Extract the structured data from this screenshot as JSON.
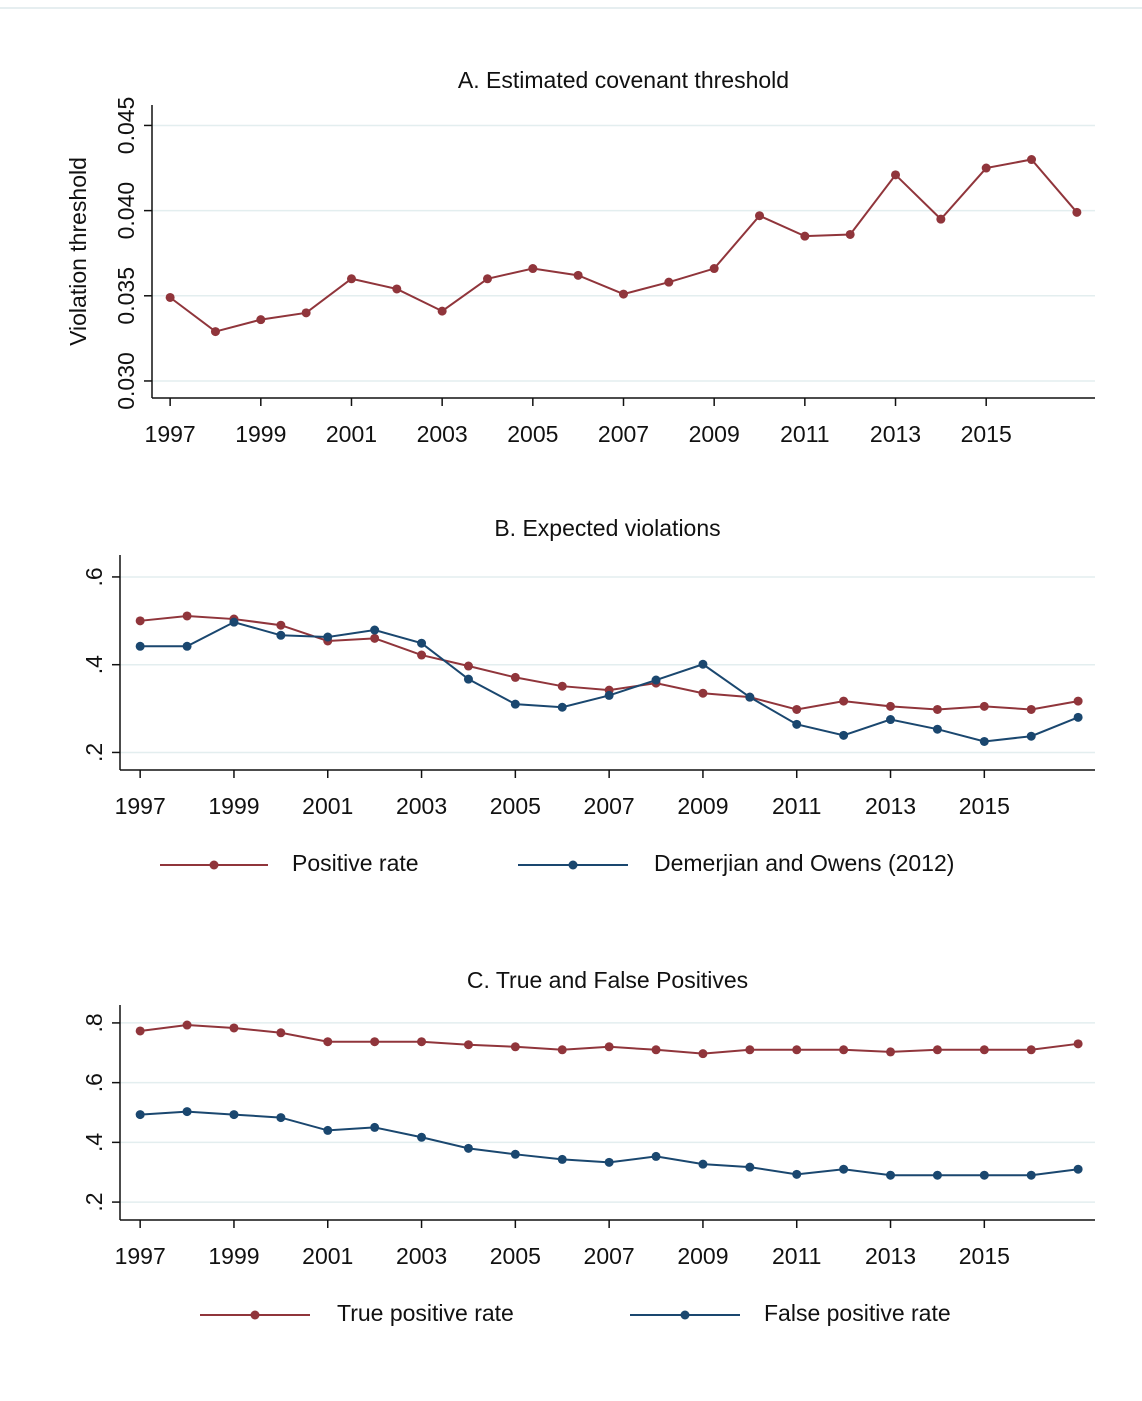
{
  "chart_data": [
    {
      "type": "line",
      "title": "A. Estimated covenant threshold",
      "ylabel": "Violation threshold",
      "x": [
        1997,
        1998,
        1999,
        2000,
        2001,
        2002,
        2003,
        2004,
        2005,
        2006,
        2007,
        2008,
        2009,
        2010,
        2011,
        2012,
        2013,
        2014,
        2015,
        2016,
        2017
      ],
      "series": [
        {
          "color": "#90353b",
          "values": [
            0.0349,
            0.0329,
            0.0336,
            0.034,
            0.036,
            0.0354,
            0.0341,
            0.036,
            0.0366,
            0.0362,
            0.0351,
            0.0358,
            0.0366,
            0.0397,
            0.0385,
            0.0386,
            0.0421,
            0.0395,
            0.0425,
            0.043,
            0.0399
          ]
        }
      ],
      "xlim": [
        1996.6,
        2017.4
      ],
      "ylim": [
        0.029,
        0.0462
      ],
      "xticks": [
        1997,
        1999,
        2001,
        2003,
        2005,
        2007,
        2009,
        2011,
        2013,
        2015
      ],
      "yticks": [
        {
          "value": 0.03,
          "label": "0.030"
        },
        0.035,
        {
          "value": 0.04,
          "label": "0.040"
        },
        0.045
      ],
      "grid": true
    },
    {
      "type": "line",
      "title": "B. Expected violations",
      "x": [
        1997,
        1998,
        1999,
        2000,
        2001,
        2002,
        2003,
        2004,
        2005,
        2006,
        2007,
        2008,
        2009,
        2010,
        2011,
        2012,
        2013,
        2014,
        2015,
        2016,
        2017
      ],
      "series": [
        {
          "name": "Positive rate",
          "color": "#90353b",
          "values": [
            0.5,
            0.511,
            0.504,
            0.49,
            0.454,
            0.46,
            0.422,
            0.397,
            0.371,
            0.351,
            0.342,
            0.358,
            0.335,
            0.326,
            0.298,
            0.317,
            0.305,
            0.298,
            0.305,
            0.298,
            0.317
          ]
        },
        {
          "name": "Demerjian and Owens (2012)",
          "color": "#1a476f",
          "values": [
            0.442,
            0.442,
            0.497,
            0.467,
            0.463,
            0.479,
            0.449,
            0.367,
            0.31,
            0.303,
            0.33,
            0.365,
            0.401,
            0.326,
            0.264,
            0.239,
            0.275,
            0.253,
            0.225,
            0.237,
            0.28
          ]
        }
      ],
      "xlim": [
        1996.57,
        2017.36
      ],
      "ylim": [
        0.16,
        0.65
      ],
      "xticks": [
        1997,
        1999,
        2001,
        2003,
        2005,
        2007,
        2009,
        2011,
        2013,
        2015
      ],
      "yticks": [
        {
          "value": 0.2,
          "label": ".2"
        },
        {
          "value": 0.4,
          "label": ".4"
        },
        {
          "value": 0.6,
          "label": ".6"
        }
      ],
      "grid": true,
      "legend": "bottom"
    },
    {
      "type": "line",
      "title": "C. True and False Positives",
      "x": [
        1997,
        1998,
        1999,
        2000,
        2001,
        2002,
        2003,
        2004,
        2005,
        2006,
        2007,
        2008,
        2009,
        2010,
        2011,
        2012,
        2013,
        2014,
        2015,
        2016,
        2017
      ],
      "series": [
        {
          "name": "True positive rate",
          "color": "#90353b",
          "values": [
            0.773,
            0.793,
            0.783,
            0.767,
            0.737,
            0.737,
            0.737,
            0.727,
            0.72,
            0.71,
            0.72,
            0.71,
            0.697,
            0.71,
            0.71,
            0.71,
            0.703,
            0.71,
            0.71,
            0.71,
            0.73
          ]
        },
        {
          "name": "False positive rate",
          "color": "#1a476f",
          "values": [
            0.493,
            0.503,
            0.493,
            0.483,
            0.44,
            0.45,
            0.417,
            0.38,
            0.36,
            0.343,
            0.333,
            0.353,
            0.327,
            0.317,
            0.293,
            0.31,
            0.29,
            0.29,
            0.29,
            0.29,
            0.31
          ]
        }
      ],
      "xlim": [
        1996.57,
        2017.36
      ],
      "ylim": [
        0.14,
        0.86
      ],
      "xticks": [
        1997,
        1999,
        2001,
        2003,
        2005,
        2007,
        2009,
        2011,
        2013,
        2015
      ],
      "yticks": [
        {
          "value": 0.2,
          "label": ".2"
        },
        {
          "value": 0.4,
          "label": ".4"
        },
        {
          "value": 0.6,
          "label": ".6"
        },
        {
          "value": 0.8,
          "label": ".8"
        }
      ],
      "grid": true,
      "legend": "bottom"
    }
  ]
}
